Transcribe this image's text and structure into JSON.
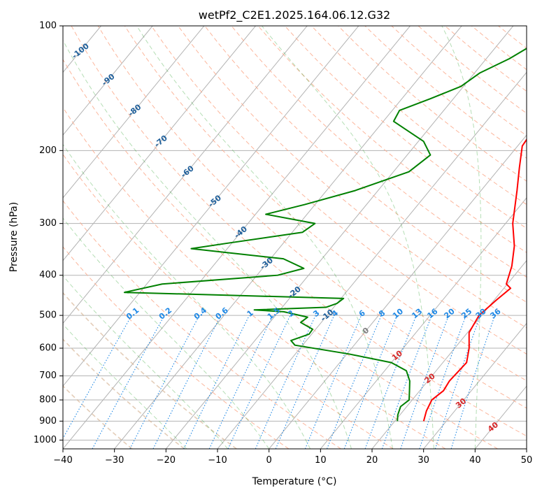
{
  "chart_data": {
    "type": "line",
    "title": "wetPf2_C2E1.2025.164.06.12.G32",
    "xlabel": "Temperature (°C)",
    "ylabel": "Pressure (hPa)",
    "xlim": [
      -40,
      50
    ],
    "ylim": [
      1050,
      100
    ],
    "yscale": "log",
    "skew_per_decade_C": 66,
    "x_ticks": [
      -40,
      -30,
      -20,
      -10,
      0,
      10,
      20,
      30,
      40,
      50
    ],
    "y_ticks": [
      100,
      200,
      300,
      400,
      500,
      600,
      700,
      800,
      900,
      1000
    ],
    "grid": true,
    "series": [
      {
        "name": "",
        "role": "temperature",
        "color": "#ff0000",
        "points": [
          {
            "p": 900,
            "t": 25.6
          },
          {
            "p": 850,
            "t": 24.5
          },
          {
            "p": 800,
            "t": 23.8
          },
          {
            "p": 760,
            "t": 24.6
          },
          {
            "p": 720,
            "t": 24.2
          },
          {
            "p": 650,
            "t": 24.6
          },
          {
            "p": 600,
            "t": 22.8
          },
          {
            "p": 550,
            "t": 20.3
          },
          {
            "p": 500,
            "t": 19.5
          },
          {
            "p": 460,
            "t": 20.4
          },
          {
            "p": 430,
            "t": 21.3
          },
          {
            "p": 420,
            "t": 19.8
          },
          {
            "p": 380,
            "t": 18.0
          },
          {
            "p": 340,
            "t": 15.3
          },
          {
            "p": 300,
            "t": 11.4
          },
          {
            "p": 250,
            "t": 7.0
          },
          {
            "p": 220,
            "t": 3.8
          },
          {
            "p": 195,
            "t": 0.9
          },
          {
            "p": 180,
            "t": 0.5
          },
          {
            "p": 165,
            "t": 0.2
          },
          {
            "p": 150,
            "t": -3.3
          },
          {
            "p": 130,
            "t": -6.2
          },
          {
            "p": 115,
            "t": -7.6
          },
          {
            "p": 106,
            "t": -7.4
          },
          {
            "p": 100,
            "t": -6.9
          }
        ]
      },
      {
        "name": "",
        "role": "dewpoint",
        "color": "#008000",
        "points": [
          {
            "p": 900,
            "t": 20.5
          },
          {
            "p": 870,
            "t": 19.6
          },
          {
            "p": 830,
            "t": 18.8
          },
          {
            "p": 800,
            "t": 19.4
          },
          {
            "p": 760,
            "t": 18.0
          },
          {
            "p": 720,
            "t": 16.5
          },
          {
            "p": 680,
            "t": 14.2
          },
          {
            "p": 650,
            "t": 10.0
          },
          {
            "p": 620,
            "t": 0.5
          },
          {
            "p": 590,
            "t": -11.5
          },
          {
            "p": 575,
            "t": -13.0
          },
          {
            "p": 555,
            "t": -10.5
          },
          {
            "p": 540,
            "t": -10.6
          },
          {
            "p": 520,
            "t": -14.0
          },
          {
            "p": 505,
            "t": -13.5
          },
          {
            "p": 490,
            "t": -19.0
          },
          {
            "p": 485,
            "t": -25.0
          },
          {
            "p": 478,
            "t": -11.5
          },
          {
            "p": 468,
            "t": -10.0
          },
          {
            "p": 455,
            "t": -9.5
          },
          {
            "p": 440,
            "t": -53.0
          },
          {
            "p": 420,
            "t": -47.0
          },
          {
            "p": 400,
            "t": -26.0
          },
          {
            "p": 385,
            "t": -22.0
          },
          {
            "p": 365,
            "t": -27.5
          },
          {
            "p": 345,
            "t": -47.0
          },
          {
            "p": 335,
            "t": -41.0
          },
          {
            "p": 315,
            "t": -28.0
          },
          {
            "p": 300,
            "t": -27.0
          },
          {
            "p": 285,
            "t": -38.0
          },
          {
            "p": 270,
            "t": -32.0
          },
          {
            "p": 250,
            "t": -24.5
          },
          {
            "p": 225,
            "t": -17.0
          },
          {
            "p": 205,
            "t": -15.5
          },
          {
            "p": 190,
            "t": -19.0
          },
          {
            "p": 170,
            "t": -28.0
          },
          {
            "p": 160,
            "t": -28.6
          },
          {
            "p": 150,
            "t": -24.5
          },
          {
            "p": 140,
            "t": -20.5
          },
          {
            "p": 130,
            "t": -19.0
          },
          {
            "p": 120,
            "t": -15.5
          },
          {
            "p": 110,
            "t": -12.9
          },
          {
            "p": 103,
            "t": -10.7
          },
          {
            "p": 100,
            "t": -9.8
          }
        ]
      }
    ],
    "colors": {
      "dry_adiabat": "#fcae91",
      "moist_adiabat": "#2ca02c",
      "mixing_ratio": "#1e88e5",
      "isotherm_label_negative": "#1f5f9a",
      "isotherm_label_zero": "#808080",
      "isotherm_label_positive": "#d62728",
      "mixing_label": "#1e88e5",
      "grid": "#b3b3b3"
    },
    "isotherm_labels": [
      {
        "t": -100,
        "p": 115
      },
      {
        "t": -90,
        "p": 135
      },
      {
        "t": -80,
        "p": 160
      },
      {
        "t": -70,
        "p": 190
      },
      {
        "t": -60,
        "p": 225
      },
      {
        "t": -50,
        "p": 265
      },
      {
        "t": -40,
        "p": 315
      },
      {
        "t": -30,
        "p": 375
      },
      {
        "t": -20,
        "p": 440
      },
      {
        "t": -10,
        "p": 500
      },
      {
        "t": 0,
        "p": 545
      },
      {
        "t": 10,
        "p": 625
      },
      {
        "t": 20,
        "p": 710
      },
      {
        "t": 30,
        "p": 815
      },
      {
        "t": 40,
        "p": 930
      }
    ],
    "mixing_ratio_labels": [
      "0.1",
      "0.2",
      "0.4",
      "0.6",
      "1",
      "1.5",
      "2",
      "3",
      "4",
      "6",
      "8",
      "10",
      "13",
      "16",
      "20",
      "25",
      "30",
      "36"
    ],
    "mixing_ratio_label_p": 495
  }
}
